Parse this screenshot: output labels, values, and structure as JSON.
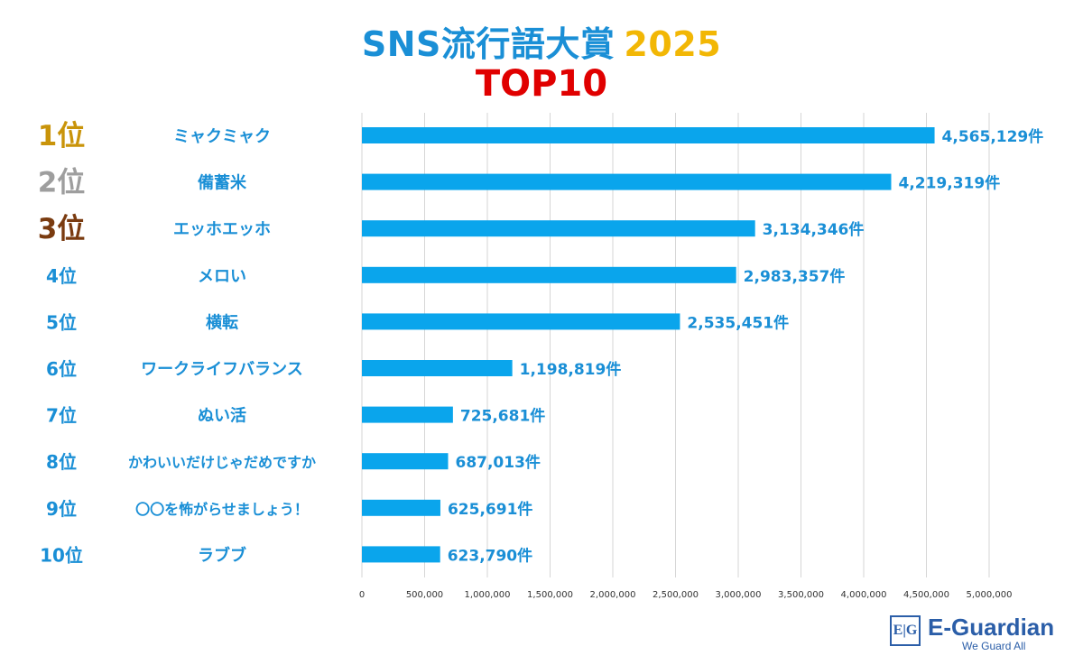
{
  "header": {
    "title_main": "SNS流行語大賞",
    "title_year": "2025",
    "subtitle": "TOP10"
  },
  "colors": {
    "bar": "#0aa5ec",
    "title_blue": "#1a8fd6",
    "title_yellow": "#f2b705",
    "subtitle_red": "#e00000",
    "rank_gold": "#c9940a",
    "rank_silver": "#9e9e9e",
    "rank_bronze": "#7a3b10",
    "rank_default": "#1a8fd6"
  },
  "chart_data": {
    "type": "bar",
    "orientation": "horizontal",
    "ranks": [
      "1位",
      "2位",
      "3位",
      "4位",
      "5位",
      "6位",
      "7位",
      "8位",
      "9位",
      "10位"
    ],
    "categories": [
      "ミャクミャク",
      "備蓄米",
      "エッホエッホ",
      "メロい",
      "横転",
      "ワークライフバランス",
      "ぬい活",
      "かわいいだけじゃだめですか",
      "〇〇を怖がらせましょう！",
      "ラブブ"
    ],
    "values": [
      4565129,
      4219319,
      3134346,
      2983357,
      2535451,
      1198819,
      725681,
      687013,
      625691,
      623790
    ],
    "value_labels": [
      "4,565,129件",
      "4,219,319件",
      "3,134,346件",
      "2,983,357件",
      "2,535,451件",
      "1,198,819件",
      "725,681件",
      "687,013件",
      "625,691件",
      "623,790件"
    ],
    "xlim": [
      0,
      5000000
    ],
    "xticks": [
      0,
      500000,
      1000000,
      1500000,
      2000000,
      2500000,
      3000000,
      3500000,
      4000000,
      4500000,
      5000000
    ],
    "xtick_labels": [
      "0",
      "500,000",
      "1,000,000",
      "1,500,000",
      "2,000,000",
      "2,500,000",
      "3,000,000",
      "3,500,000",
      "4,000,000",
      "4,500,000",
      "5,000,000"
    ],
    "grid": true
  },
  "logo": {
    "mark": "E|G",
    "name": "E-Guardian",
    "tagline": "We Guard All"
  }
}
